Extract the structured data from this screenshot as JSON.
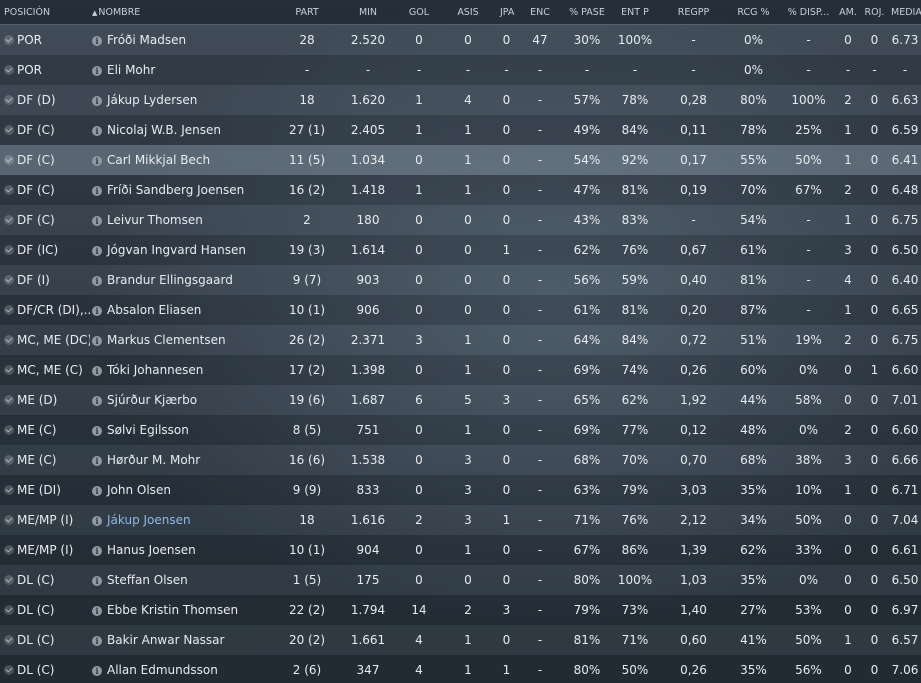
{
  "headers": {
    "pos": "POSICIÓN",
    "name": "NOMBRE",
    "part": "PART",
    "min": "MIN",
    "gol": "GOL",
    "asis": "ASIS",
    "jpar": "JPAR",
    "enc": "ENC",
    "pase": "% PASE",
    "entp": "ENT P",
    "regpp": "REGPP",
    "rcg": "RCG %",
    "disp": "% DISP...",
    "am": "AM.",
    "roj": "ROJ.",
    "media": "MEDIA"
  },
  "sort_arrow": "▲",
  "info_glyph": "i",
  "rows": [
    {
      "pos": "POR",
      "name": "Fróði Madsen",
      "part": "28",
      "min": "2.520",
      "gol": "0",
      "asis": "0",
      "jpar": "0",
      "enc": "47",
      "pase": "30%",
      "entp": "100%",
      "regpp": "-",
      "rcg": "0%",
      "disp": "-",
      "am": "0",
      "roj": "0",
      "media": "6.73"
    },
    {
      "pos": "POR",
      "name": "Eli Mohr",
      "part": "-",
      "min": "-",
      "gol": "-",
      "asis": "-",
      "jpar": "-",
      "enc": "-",
      "pase": "-",
      "entp": "-",
      "regpp": "-",
      "rcg": "0%",
      "disp": "-",
      "am": "-",
      "roj": "-",
      "media": "-"
    },
    {
      "pos": "DF (D)",
      "name": "Jákup Lydersen",
      "part": "18",
      "min": "1.620",
      "gol": "1",
      "asis": "4",
      "jpar": "0",
      "enc": "-",
      "pase": "57%",
      "entp": "78%",
      "regpp": "0,28",
      "rcg": "80%",
      "disp": "100%",
      "am": "2",
      "roj": "0",
      "media": "6.63"
    },
    {
      "pos": "DF (C)",
      "name": "Nicolaj W.B. Jensen",
      "part": "27 (1)",
      "min": "2.405",
      "gol": "1",
      "asis": "1",
      "jpar": "0",
      "enc": "-",
      "pase": "49%",
      "entp": "84%",
      "regpp": "0,11",
      "rcg": "78%",
      "disp": "25%",
      "am": "1",
      "roj": "0",
      "media": "6.59"
    },
    {
      "pos": "DF (C)",
      "name": "Carl Mikkjal Bech",
      "part": "11 (5)",
      "min": "1.034",
      "gol": "0",
      "asis": "1",
      "jpar": "0",
      "enc": "-",
      "pase": "54%",
      "entp": "92%",
      "regpp": "0,17",
      "rcg": "55%",
      "disp": "50%",
      "am": "1",
      "roj": "0",
      "media": "6.41",
      "selected": true
    },
    {
      "pos": "DF (C)",
      "name": "Fríði Sandberg Joensen",
      "part": "16 (2)",
      "min": "1.418",
      "gol": "1",
      "asis": "1",
      "jpar": "0",
      "enc": "-",
      "pase": "47%",
      "entp": "81%",
      "regpp": "0,19",
      "rcg": "70%",
      "disp": "67%",
      "am": "2",
      "roj": "0",
      "media": "6.48"
    },
    {
      "pos": "DF (C)",
      "name": "Leivur Thomsen",
      "part": "2",
      "min": "180",
      "gol": "0",
      "asis": "0",
      "jpar": "0",
      "enc": "-",
      "pase": "43%",
      "entp": "83%",
      "regpp": "-",
      "rcg": "54%",
      "disp": "-",
      "am": "1",
      "roj": "0",
      "media": "6.75"
    },
    {
      "pos": "DF (IC)",
      "name": "Jógvan Ingvard Hansen",
      "part": "19 (3)",
      "min": "1.614",
      "gol": "0",
      "asis": "0",
      "jpar": "1",
      "enc": "-",
      "pase": "62%",
      "entp": "76%",
      "regpp": "0,67",
      "rcg": "61%",
      "disp": "-",
      "am": "3",
      "roj": "0",
      "media": "6.50"
    },
    {
      "pos": "DF (I)",
      "name": "Brandur Ellingsgaard",
      "part": "9 (7)",
      "min": "903",
      "gol": "0",
      "asis": "0",
      "jpar": "0",
      "enc": "-",
      "pase": "56%",
      "entp": "59%",
      "regpp": "0,40",
      "rcg": "81%",
      "disp": "-",
      "am": "4",
      "roj": "0",
      "media": "6.40"
    },
    {
      "pos": "DF/CR (DI),...",
      "name": "Absalon Eliasen",
      "part": "10 (1)",
      "min": "906",
      "gol": "0",
      "asis": "0",
      "jpar": "0",
      "enc": "-",
      "pase": "61%",
      "entp": "81%",
      "regpp": "0,20",
      "rcg": "87%",
      "disp": "-",
      "am": "1",
      "roj": "0",
      "media": "6.65"
    },
    {
      "pos": "MC, ME (DC)",
      "name": "Markus Clementsen",
      "part": "26 (2)",
      "min": "2.371",
      "gol": "3",
      "asis": "1",
      "jpar": "0",
      "enc": "-",
      "pase": "64%",
      "entp": "84%",
      "regpp": "0,72",
      "rcg": "51%",
      "disp": "19%",
      "am": "2",
      "roj": "0",
      "media": "6.75"
    },
    {
      "pos": "MC, ME (C)",
      "name": "Tóki Johannesen",
      "part": "17 (2)",
      "min": "1.398",
      "gol": "0",
      "asis": "1",
      "jpar": "0",
      "enc": "-",
      "pase": "69%",
      "entp": "74%",
      "regpp": "0,26",
      "rcg": "60%",
      "disp": "0%",
      "am": "0",
      "roj": "1",
      "media": "6.60"
    },
    {
      "pos": "ME (D)",
      "name": "Sjúrður Kjærbo",
      "part": "19 (6)",
      "min": "1.687",
      "gol": "6",
      "asis": "5",
      "jpar": "3",
      "enc": "-",
      "pase": "65%",
      "entp": "62%",
      "regpp": "1,92",
      "rcg": "44%",
      "disp": "58%",
      "am": "0",
      "roj": "0",
      "media": "7.01"
    },
    {
      "pos": "ME (C)",
      "name": "Sølvi Egilsson",
      "part": "8 (5)",
      "min": "751",
      "gol": "0",
      "asis": "1",
      "jpar": "0",
      "enc": "-",
      "pase": "69%",
      "entp": "77%",
      "regpp": "0,12",
      "rcg": "48%",
      "disp": "0%",
      "am": "2",
      "roj": "0",
      "media": "6.60"
    },
    {
      "pos": "ME (C)",
      "name": "Hørður M. Mohr",
      "part": "16 (6)",
      "min": "1.538",
      "gol": "0",
      "asis": "3",
      "jpar": "0",
      "enc": "-",
      "pase": "68%",
      "entp": "70%",
      "regpp": "0,70",
      "rcg": "68%",
      "disp": "38%",
      "am": "3",
      "roj": "0",
      "media": "6.66"
    },
    {
      "pos": "ME (DI)",
      "name": "John Olsen",
      "part": "9 (9)",
      "min": "833",
      "gol": "0",
      "asis": "3",
      "jpar": "0",
      "enc": "-",
      "pase": "63%",
      "entp": "79%",
      "regpp": "3,03",
      "rcg": "35%",
      "disp": "10%",
      "am": "1",
      "roj": "0",
      "media": "6.71"
    },
    {
      "pos": "ME/MP (I)",
      "name": "Jákup Joensen",
      "part": "18",
      "min": "1.616",
      "gol": "2",
      "asis": "3",
      "jpar": "1",
      "enc": "-",
      "pase": "71%",
      "entp": "76%",
      "regpp": "2,12",
      "rcg": "34%",
      "disp": "50%",
      "am": "0",
      "roj": "0",
      "media": "7.04",
      "highlight": true
    },
    {
      "pos": "ME/MP (I)",
      "name": "Hanus Joensen",
      "part": "10 (1)",
      "min": "904",
      "gol": "0",
      "asis": "1",
      "jpar": "0",
      "enc": "-",
      "pase": "67%",
      "entp": "86%",
      "regpp": "1,39",
      "rcg": "62%",
      "disp": "33%",
      "am": "0",
      "roj": "0",
      "media": "6.61"
    },
    {
      "pos": "DL (C)",
      "name": "Steffan Olsen",
      "part": "1 (5)",
      "min": "175",
      "gol": "0",
      "asis": "0",
      "jpar": "0",
      "enc": "-",
      "pase": "80%",
      "entp": "100%",
      "regpp": "1,03",
      "rcg": "35%",
      "disp": "0%",
      "am": "0",
      "roj": "0",
      "media": "6.50"
    },
    {
      "pos": "DL (C)",
      "name": "Ebbe Kristin Thomsen",
      "part": "22 (2)",
      "min": "1.794",
      "gol": "14",
      "asis": "2",
      "jpar": "3",
      "enc": "-",
      "pase": "79%",
      "entp": "73%",
      "regpp": "1,40",
      "rcg": "27%",
      "disp": "53%",
      "am": "0",
      "roj": "0",
      "media": "6.97"
    },
    {
      "pos": "DL (C)",
      "name": "Bakir Anwar Nassar",
      "part": "20 (2)",
      "min": "1.661",
      "gol": "4",
      "asis": "1",
      "jpar": "0",
      "enc": "-",
      "pase": "81%",
      "entp": "71%",
      "regpp": "0,60",
      "rcg": "41%",
      "disp": "50%",
      "am": "1",
      "roj": "0",
      "media": "6.57"
    },
    {
      "pos": "DL (C)",
      "name": "Allan Edmundsson",
      "part": "2 (6)",
      "min": "347",
      "gol": "4",
      "asis": "1",
      "jpar": "1",
      "enc": "-",
      "pase": "80%",
      "entp": "50%",
      "regpp": "0,26",
      "rcg": "35%",
      "disp": "56%",
      "am": "0",
      "roj": "0",
      "media": "7.06"
    }
  ]
}
